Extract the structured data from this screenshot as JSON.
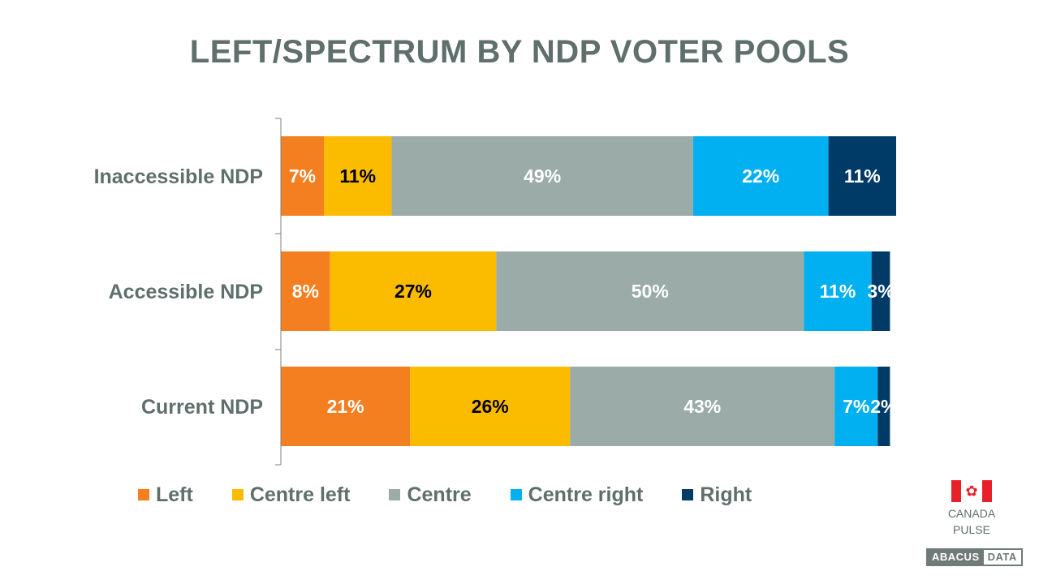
{
  "colors": {
    "left": "#f47f20",
    "centre_left": "#fbbc00",
    "centre": "#9aaba8",
    "centre_right": "#00b0f0",
    "right": "#003a66",
    "text": "#5f6f6c"
  },
  "chart_data": {
    "type": "bar",
    "orientation": "horizontal",
    "stacked": true,
    "title": "LEFT/SPECTRUM BY NDP VOTER POOLS",
    "categories": [
      "Inaccessible NDP",
      "Accessible NDP",
      "Current NDP"
    ],
    "series": [
      {
        "name": "Left",
        "values": [
          7,
          8,
          21
        ],
        "labels": [
          "7%",
          "8%",
          "21%"
        ]
      },
      {
        "name": "Centre left",
        "values": [
          11,
          27,
          26
        ],
        "labels": [
          "11%",
          "27%",
          "26%"
        ]
      },
      {
        "name": "Centre",
        "values": [
          49,
          50,
          43
        ],
        "labels": [
          "49%",
          "50%",
          "43%"
        ]
      },
      {
        "name": "Centre right",
        "values": [
          22,
          11,
          7
        ],
        "labels": [
          "22%",
          "11%",
          "7%"
        ]
      },
      {
        "name": "Right",
        "values": [
          11,
          3,
          2
        ],
        "labels": [
          "11%",
          "3%",
          "2%"
        ]
      }
    ],
    "xlim": [
      0,
      100
    ],
    "legend": "bottom",
    "grid": false
  },
  "badge": {
    "line1": "CANADA",
    "line2": "PULSE",
    "logo_part1": "ABACUS",
    "logo_part2": "DATA"
  }
}
